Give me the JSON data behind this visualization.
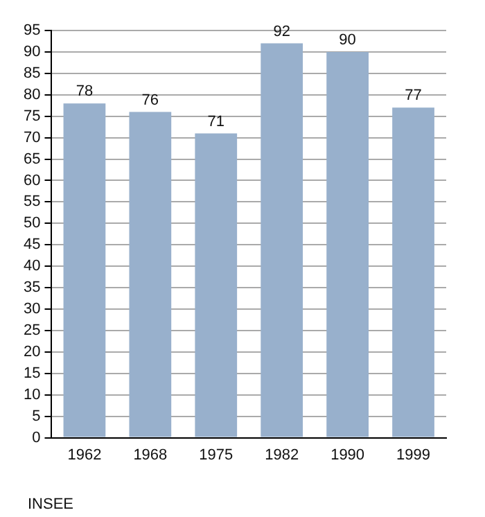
{
  "chart_data": {
    "type": "bar",
    "categories": [
      "1962",
      "1968",
      "1975",
      "1982",
      "1990",
      "1999"
    ],
    "values": [
      78,
      76,
      71,
      92,
      90,
      77
    ],
    "color": "#98b0cc",
    "ylim": [
      0,
      95
    ],
    "yticks": [
      0,
      5,
      10,
      15,
      20,
      25,
      30,
      35,
      40,
      45,
      50,
      55,
      60,
      65,
      70,
      75,
      80,
      85,
      90,
      95
    ],
    "grid": "y",
    "data_labels": true,
    "legend": false,
    "annotations": [
      "INSEE"
    ]
  }
}
